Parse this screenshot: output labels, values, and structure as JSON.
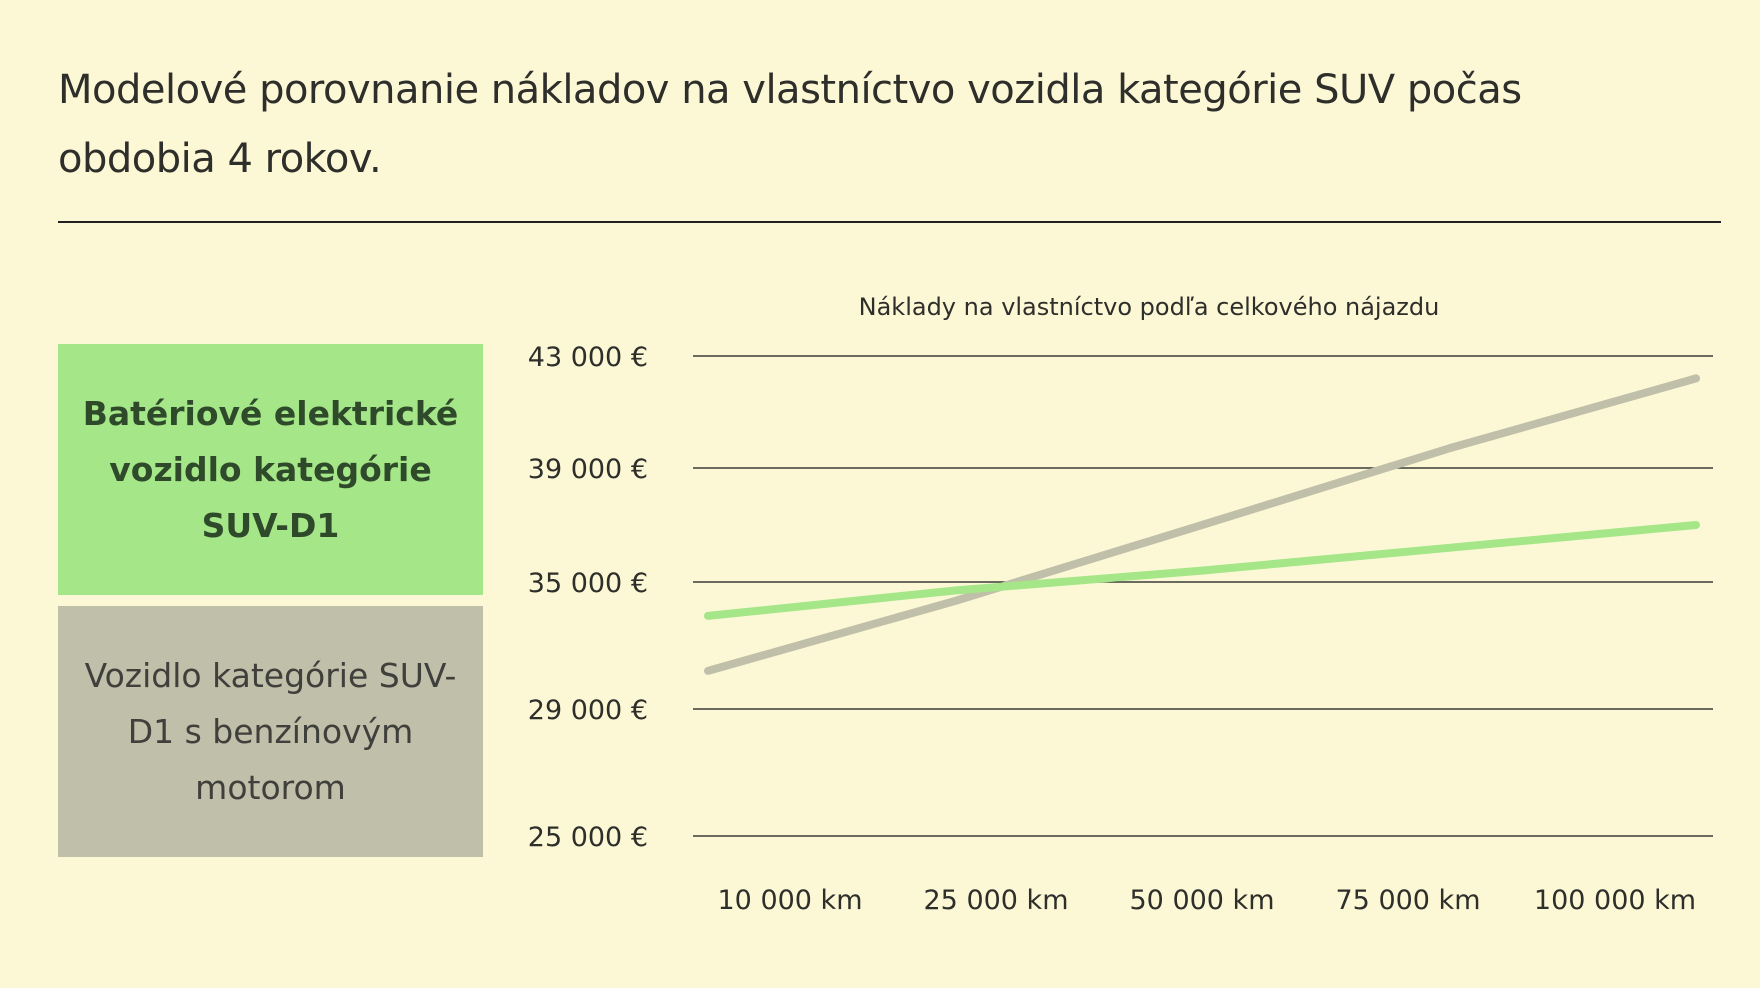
{
  "page": {
    "title": "Modelové porovnanie nákladov na vlastníctvo  vozidla kategórie SUV počas obdobia 4 rokov."
  },
  "legend": {
    "items": [
      {
        "label": "Batériové elektrické vozidlo kategórie SUV-D1",
        "color": "#a4e688"
      },
      {
        "label": "Vozidlo kategórie SUV-D1 s benzínovým motorom",
        "color": "#c0bfa9"
      }
    ]
  },
  "chart_data": {
    "type": "line",
    "title": "Náklady na vlastníctvo podľa celkového nájazdu",
    "xlabel": "",
    "ylabel": "",
    "categories": [
      "10 000 km",
      "25 000 km",
      "50 000 km",
      "75 000 km",
      "100 000 km"
    ],
    "y_ticks": [
      "25 000 €",
      "29 000 €",
      "35 000 €",
      "39 000 €",
      "43 000 €"
    ],
    "y_tick_values": [
      25000,
      29000,
      35000,
      39000,
      43000
    ],
    "grid": true,
    "series": [
      {
        "name": "Batériové elektrické vozidlo kategórie SUV-D1",
        "color": "#a4e688",
        "values": [
          33400,
          34600,
          35400,
          36200,
          37000
        ]
      },
      {
        "name": "Vozidlo kategórie SUV-D1 s benzínovým motorom",
        "color": "#c0bfa9",
        "values": [
          30800,
          34100,
          37000,
          39700,
          42200
        ]
      }
    ]
  }
}
